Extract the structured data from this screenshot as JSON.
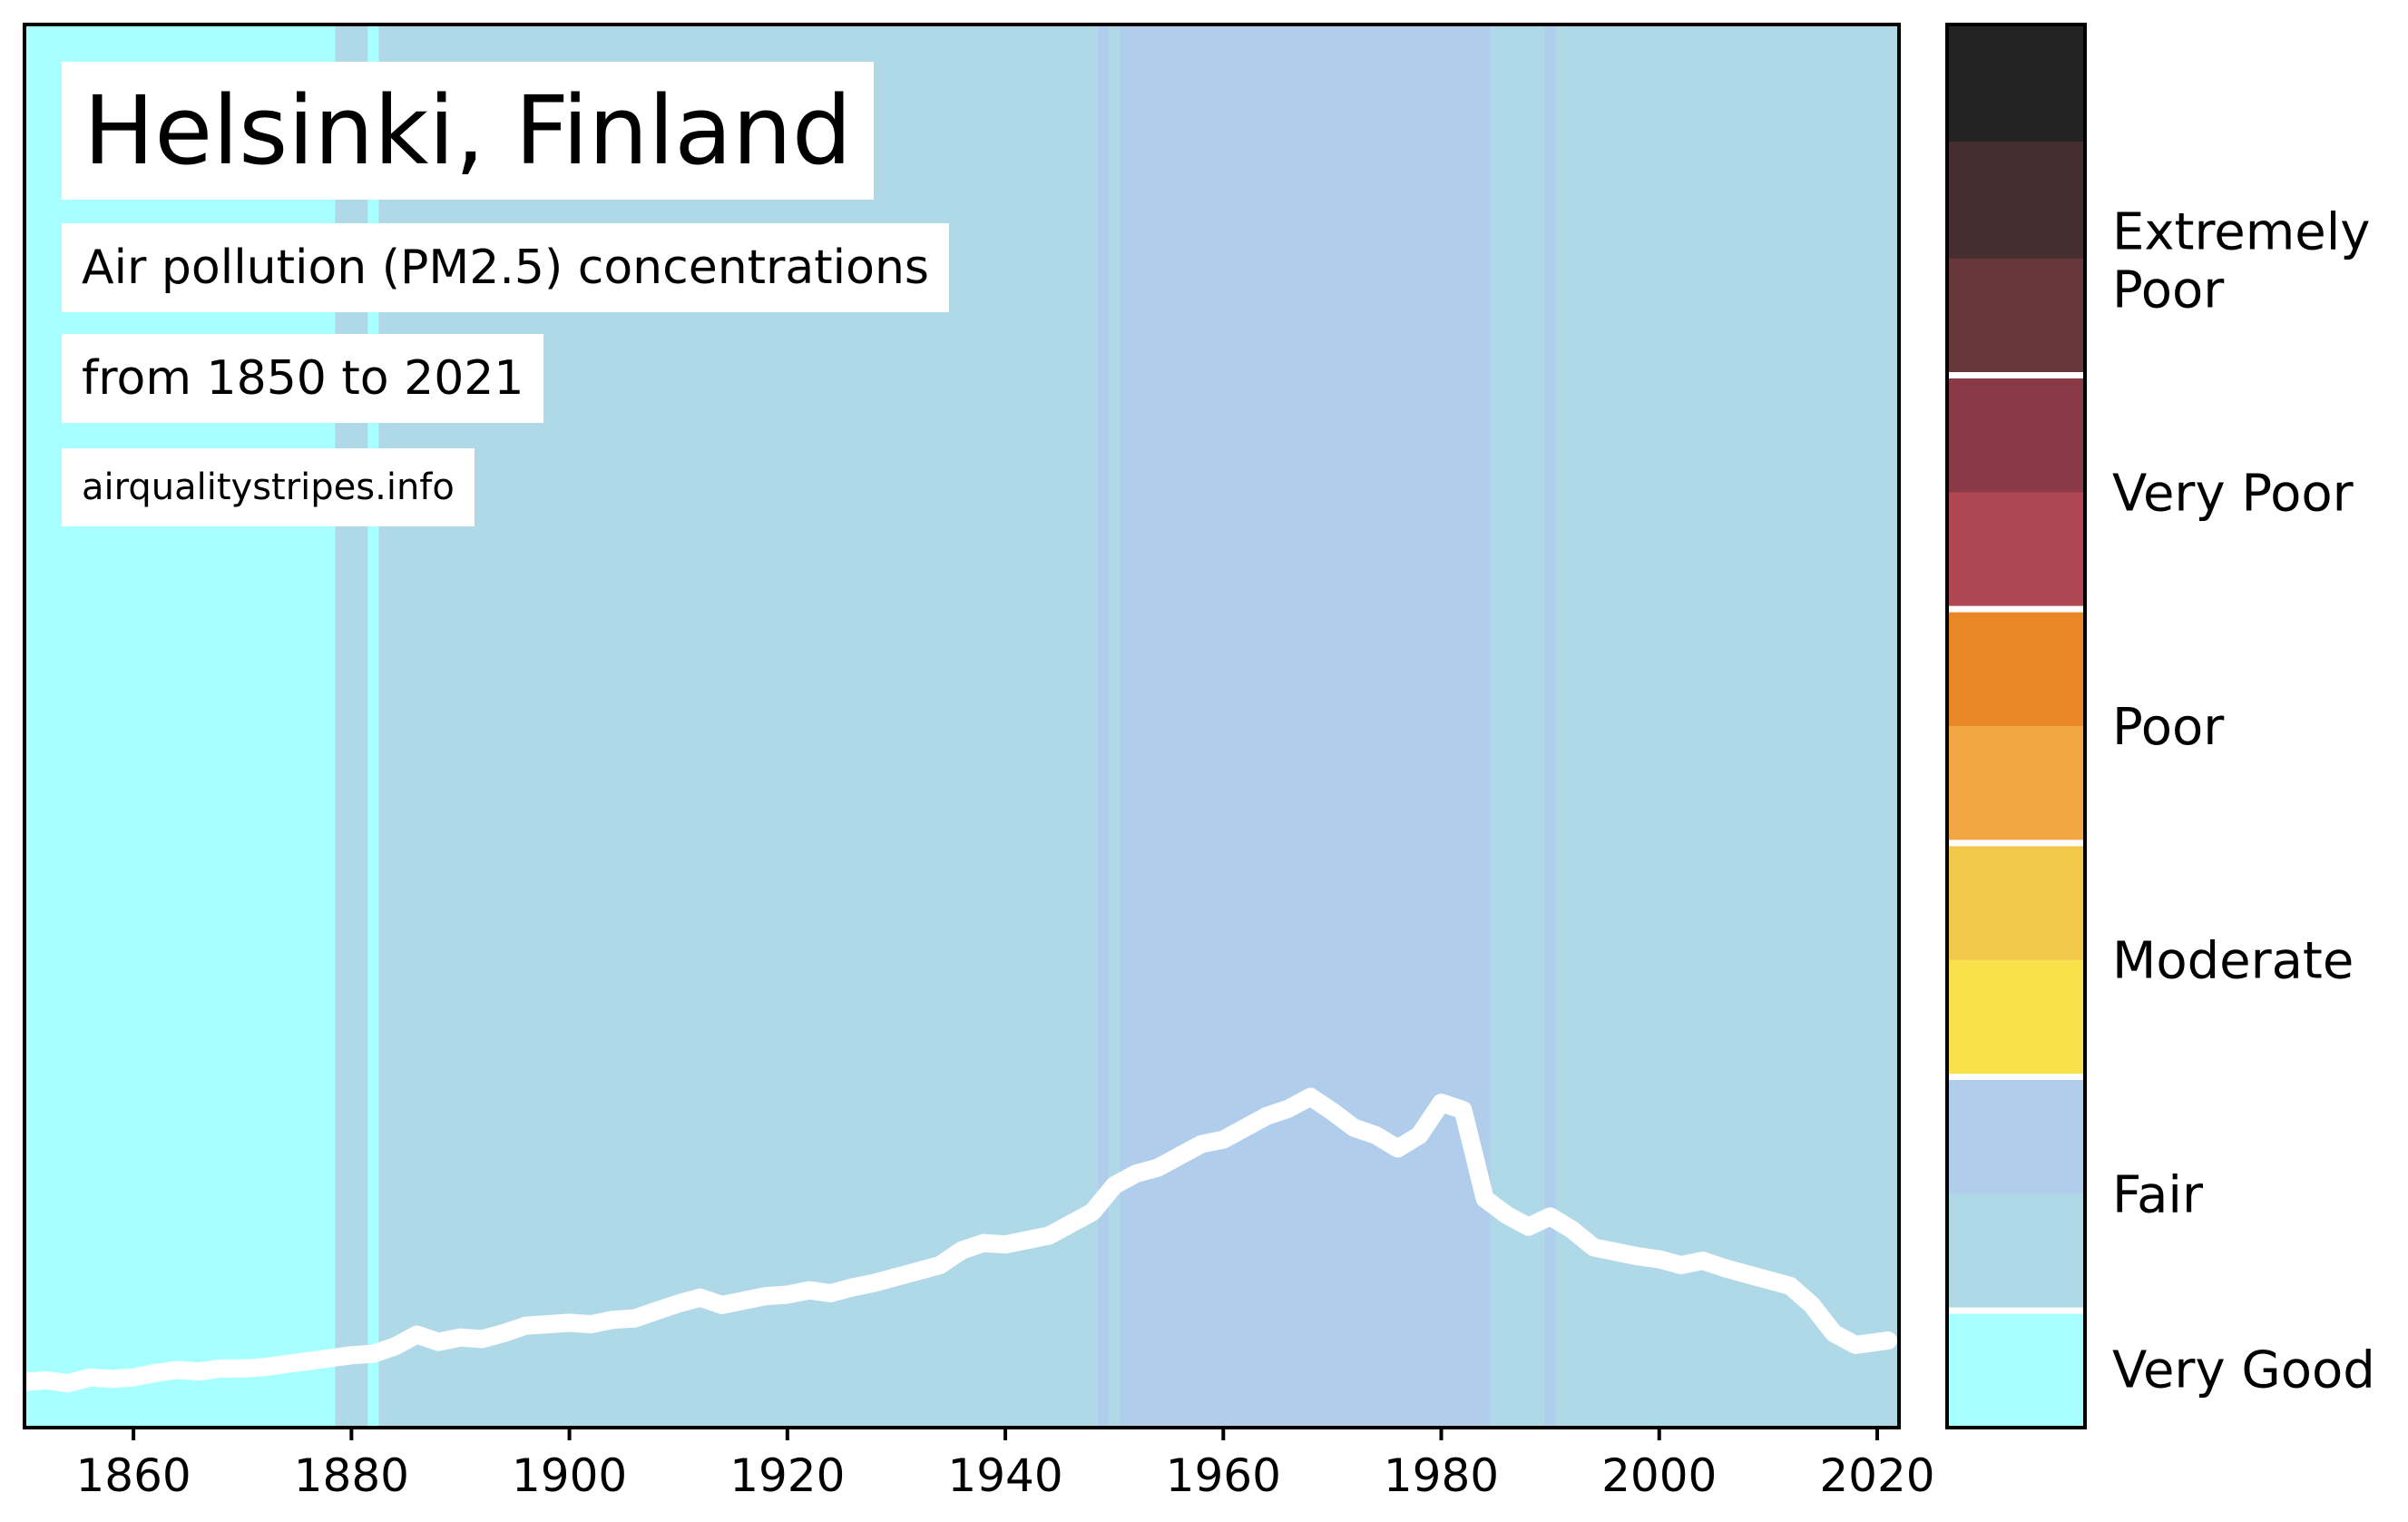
{
  "header": {
    "title": "Helsinki, Finland",
    "subtitle_line1": "Air pollution (PM2.5) concentrations",
    "subtitle_line2": "from 1850 to 2021",
    "source": "airqualitystripes.info"
  },
  "chart_data": {
    "type": "area",
    "title": "Helsinki, Finland",
    "subtitle": "Air pollution (PM2.5) concentrations from 1850 to 2021",
    "xlabel": "",
    "ylabel": "",
    "xlim": [
      1850,
      2022
    ],
    "ylim": [
      0,
      95
    ],
    "grid": false,
    "x_ticks": [
      1860,
      1880,
      1900,
      1920,
      1940,
      1960,
      1980,
      2000,
      2020
    ],
    "stripes": [
      {
        "from": 1850,
        "to": 1878.5,
        "category": "Very Good"
      },
      {
        "from": 1878.5,
        "to": 1881.5,
        "category": "Fair"
      },
      {
        "from": 1881.5,
        "to": 1882.5,
        "category": "Very Good"
      },
      {
        "from": 1882.5,
        "to": 1948.5,
        "category": "Fair"
      },
      {
        "from": 1948.5,
        "to": 1949.5,
        "category": "Fair (upper)"
      },
      {
        "from": 1949.5,
        "to": 1950.5,
        "category": "Fair"
      },
      {
        "from": 1950.5,
        "to": 1984.5,
        "category": "Fair (upper)"
      },
      {
        "from": 1984.5,
        "to": 1989.5,
        "category": "Fair"
      },
      {
        "from": 1989.5,
        "to": 1990.5,
        "category": "Fair (upper)"
      },
      {
        "from": 1990.5,
        "to": 2022,
        "category": "Fair"
      }
    ],
    "series": [
      {
        "values": [
          [
            1850,
            3.1
          ],
          [
            1852,
            3.2
          ],
          [
            1854,
            3.0
          ],
          [
            1856,
            3.4
          ],
          [
            1858,
            3.3
          ],
          [
            1860,
            3.4
          ],
          [
            1862,
            3.7
          ],
          [
            1864,
            3.9
          ],
          [
            1866,
            3.8
          ],
          [
            1868,
            4.0
          ],
          [
            1870,
            4.0
          ],
          [
            1872,
            4.1
          ],
          [
            1874,
            4.3
          ],
          [
            1876,
            4.5
          ],
          [
            1878,
            4.7
          ],
          [
            1880,
            4.9
          ],
          [
            1882,
            5.0
          ],
          [
            1884,
            5.5
          ],
          [
            1886,
            6.3
          ],
          [
            1888,
            5.8
          ],
          [
            1890,
            6.1
          ],
          [
            1892,
            6.0
          ],
          [
            1894,
            6.4
          ],
          [
            1896,
            6.9
          ],
          [
            1898,
            7.0
          ],
          [
            1900,
            7.1
          ],
          [
            1902,
            7.0
          ],
          [
            1904,
            7.3
          ],
          [
            1906,
            7.4
          ],
          [
            1908,
            7.9
          ],
          [
            1910,
            8.4
          ],
          [
            1912,
            8.8
          ],
          [
            1914,
            8.3
          ],
          [
            1916,
            8.6
          ],
          [
            1918,
            8.9
          ],
          [
            1920,
            9.0
          ],
          [
            1922,
            9.3
          ],
          [
            1924,
            9.1
          ],
          [
            1926,
            9.5
          ],
          [
            1928,
            9.8
          ],
          [
            1930,
            10.2
          ],
          [
            1932,
            10.6
          ],
          [
            1934,
            11.0
          ],
          [
            1936,
            12.0
          ],
          [
            1938,
            12.5
          ],
          [
            1940,
            12.4
          ],
          [
            1942,
            12.7
          ],
          [
            1944,
            13.0
          ],
          [
            1946,
            13.8
          ],
          [
            1948,
            14.6
          ],
          [
            1950,
            16.4
          ],
          [
            1952,
            17.2
          ],
          [
            1954,
            17.6
          ],
          [
            1956,
            18.4
          ],
          [
            1958,
            19.2
          ],
          [
            1960,
            19.5
          ],
          [
            1962,
            20.3
          ],
          [
            1964,
            21.1
          ],
          [
            1966,
            21.6
          ],
          [
            1968,
            22.4
          ],
          [
            1970,
            21.4
          ],
          [
            1972,
            20.3
          ],
          [
            1974,
            19.8
          ],
          [
            1976,
            18.9
          ],
          [
            1978,
            19.8
          ],
          [
            1980,
            22.0
          ],
          [
            1982,
            21.5
          ],
          [
            1984,
            15.5
          ],
          [
            1986,
            14.4
          ],
          [
            1988,
            13.6
          ],
          [
            1990,
            14.3
          ],
          [
            1992,
            13.4
          ],
          [
            1994,
            12.2
          ],
          [
            1996,
            11.9
          ],
          [
            1998,
            11.6
          ],
          [
            2000,
            11.4
          ],
          [
            2002,
            11.0
          ],
          [
            2004,
            11.3
          ],
          [
            2006,
            10.8
          ],
          [
            2008,
            10.4
          ],
          [
            2010,
            10.0
          ],
          [
            2012,
            9.6
          ],
          [
            2014,
            8.3
          ],
          [
            2016,
            6.4
          ],
          [
            2018,
            5.6
          ],
          [
            2020,
            5.8
          ],
          [
            2021,
            5.9
          ]
        ]
      }
    ],
    "legend": {
      "placement": "right",
      "labels": [
        "Extremely Poor",
        "Very Poor",
        "Poor",
        "Moderate",
        "Fair",
        "Very Good"
      ]
    },
    "colors": {
      "very_good": "#a8ffff",
      "fair": "#b0d9e8",
      "fair_upper": "#b0cdec",
      "moderate_lower": "#f9e14b",
      "moderate_upper": "#f2c84b",
      "poor_lower": "#f1a641",
      "poor_upper": "#e98727",
      "very_poor_lower": "#ae4751",
      "very_poor_upper": "#8a3946",
      "extremely_poor_1": "#67373b",
      "extremely_poor_2": "#452d30",
      "extremely_poor_3": "#232323",
      "line": "#ffffff"
    }
  }
}
